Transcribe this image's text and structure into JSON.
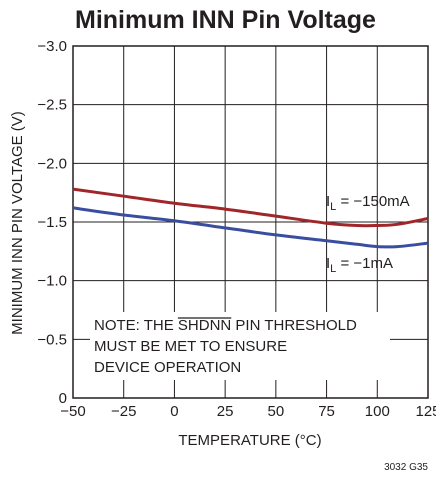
{
  "chart_data": {
    "type": "line",
    "title": "Minimum INN Pin Voltage",
    "xlabel": "TEMPERATURE (°C)",
    "ylabel": "MINIMUM INN PIN VOLTAGE (V)",
    "xlim": [
      -50,
      125
    ],
    "ylim": [
      0,
      -3.0
    ],
    "x_ticks": [
      "−50",
      "−25",
      "0",
      "25",
      "50",
      "75",
      "100",
      "125"
    ],
    "y_ticks": [
      "0",
      "−0.5",
      "−1.0",
      "−1.5",
      "−2.0",
      "−2.5",
      "−3.0"
    ],
    "grid": true,
    "series": [
      {
        "name": "I_L = −150mA",
        "label_main": "I",
        "label_sub": "L",
        "label_rest": " = −150mA",
        "color": "#a0262a",
        "x": [
          -50,
          -25,
          0,
          25,
          50,
          75,
          90,
          100,
          110,
          125
        ],
        "y": [
          -1.78,
          -1.72,
          -1.66,
          -1.61,
          -1.55,
          -1.49,
          -1.47,
          -1.47,
          -1.48,
          -1.53
        ]
      },
      {
        "name": "I_L = −1mA",
        "label_main": "I",
        "label_sub": "L",
        "label_rest": " = −1mA",
        "color": "#3a4ea0",
        "x": [
          -50,
          -25,
          0,
          25,
          50,
          75,
          90,
          100,
          110,
          125
        ],
        "y": [
          -1.62,
          -1.56,
          -1.51,
          -1.45,
          -1.39,
          -1.34,
          -1.31,
          -1.29,
          -1.29,
          -1.32
        ]
      }
    ],
    "note": {
      "line1_prefix": "NOTE: THE ",
      "line1_overline": "SHDNN",
      "line1_suffix": " PIN THRESHOLD",
      "line2": "MUST BE MET TO ENSURE",
      "line3": "DEVICE OPERATION"
    },
    "figure_code": "3032 G35"
  }
}
